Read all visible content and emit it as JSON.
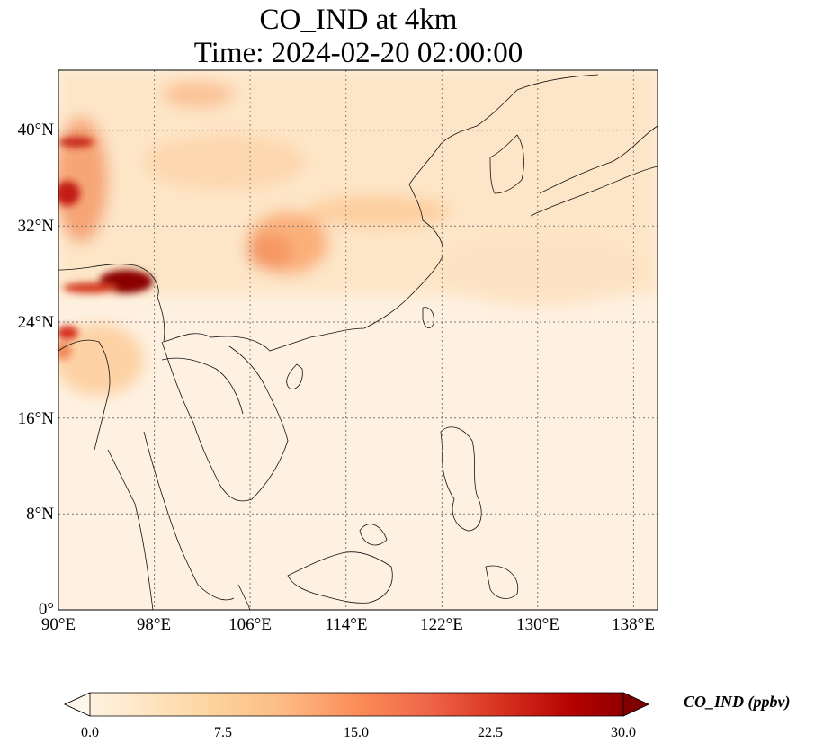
{
  "title_line1": "CO_IND at 4km",
  "title_line2": "Time: 2024-02-20 02:00:00",
  "map": {
    "lon_range": [
      90,
      140
    ],
    "lat_range": [
      0,
      45
    ],
    "grid": "dotted",
    "lat_ticks": [
      "40°N",
      "32°N",
      "24°N",
      "16°N",
      "8°N",
      "0°"
    ],
    "lon_ticks": [
      "90°E",
      "98°E",
      "106°E",
      "114°E",
      "122°E",
      "130°E",
      "138°E"
    ],
    "colormap": "OrRd"
  },
  "colorbar": {
    "label": "CO_IND (ppbv)",
    "min": 0,
    "max": 30,
    "ticks": [
      "0.0",
      "7.5",
      "15.0",
      "22.5",
      "30.0"
    ],
    "colors": [
      "#fff7ec",
      "#fee8c8",
      "#fdd49e",
      "#fdbb84",
      "#fc8d59",
      "#ef6548",
      "#d7301f",
      "#b30000",
      "#7f0000"
    ]
  }
}
